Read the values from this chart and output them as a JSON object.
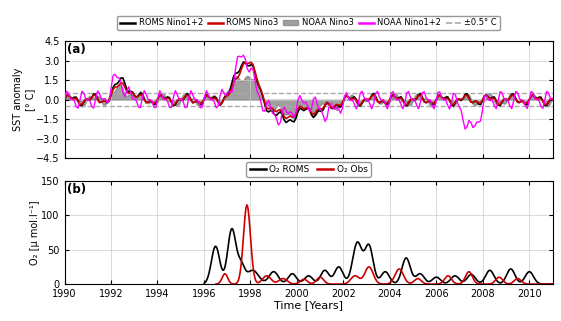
{
  "title_a": "(a)",
  "title_b": "(b)",
  "xlabel": "Time [Years]",
  "ylabel_a": "SST anomaly\n[° C]",
  "ylabel_b": "O₂ [μ mol.l⁻¹]",
  "ylim_a": [
    -4.5,
    4.5
  ],
  "ylim_b": [
    0,
    150
  ],
  "xlim": [
    1990,
    2011
  ],
  "xticks": [
    1990,
    1992,
    1994,
    1996,
    1998,
    2000,
    2002,
    2004,
    2006,
    2008,
    2010
  ],
  "yticks_a": [
    -4.5,
    -3.0,
    -1.5,
    0.0,
    1.5,
    3.0,
    4.5
  ],
  "yticks_b": [
    0,
    50,
    100,
    150
  ],
  "threshold": 0.5,
  "legend_a": [
    "ROMS Nino1+2",
    "ROMS Nino3",
    "NOAA Nino3",
    "NOAA Nino1+2",
    "±0.5° C"
  ],
  "legend_b": [
    "O₂ ROMS",
    "O₂ Obs"
  ],
  "colors": {
    "roms_nino12": "#000000",
    "roms_nino3": "#cc0000",
    "noaa_nino3": "#808080",
    "noaa_nino12": "#ff00ff",
    "threshold": "#aaaaaa",
    "o2_roms": "#000000",
    "o2_obs": "#cc0000"
  },
  "background": "#ffffff",
  "grid_color": "#cccccc"
}
